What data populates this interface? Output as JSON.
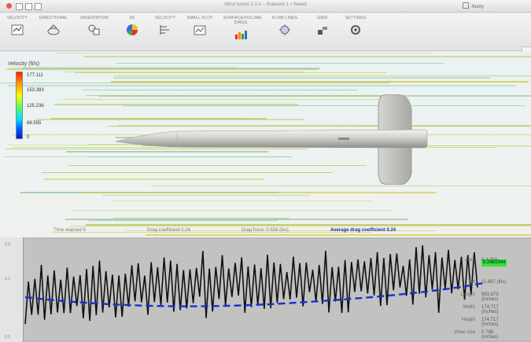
{
  "window": {
    "title": "Wind tunnel 2.0.0 – Scenario 1 • Saved",
    "user_label": "Nunty"
  },
  "toolbar": {
    "items": [
      {
        "label": "VELOCITY",
        "icon": "velocity-icon"
      },
      {
        "label": "DIRECTIONAL",
        "icon": "directional-icon"
      },
      {
        "label": "ORIENTATION",
        "icon": "orientation-icon"
      },
      {
        "label": "3D",
        "icon": "3d-color-icon"
      },
      {
        "label": "VELOCITY",
        "icon": "velocity-profile-icon"
      },
      {
        "label": "SMALL PLOT",
        "icon": "small-plot-icon"
      },
      {
        "label": "SURFACE/VOLUME DIAGS",
        "icon": "surface-volume-icon"
      },
      {
        "label": "FLOW LINES",
        "icon": "flow-lines-icon"
      },
      {
        "label": "GRID",
        "icon": "grid-icon"
      },
      {
        "label": "SETTINGS",
        "icon": "settings-icon"
      }
    ],
    "side_button": "⟨"
  },
  "legend": {
    "title": "Velocity (ft/s)",
    "values": [
      "177.111",
      "153.383",
      "125.236",
      "88.555",
      "0"
    ]
  },
  "stats": {
    "time": "Time elapsed 5",
    "drag_coefficient": "Drag coefficient 0.24",
    "drag_force": "Drag force: 0.558 (lbs)",
    "avg_drag_coefficient": "Average drag coefficient 0.24"
  },
  "graph": {
    "y_ticks": [
      "0.6",
      "0.2",
      "0.0"
    ],
    "current_badge": "0.2481344",
    "info": [
      {
        "key": "Area",
        "value": "8.4 (ft2)"
      },
      {
        "key": "Lift",
        "value": "11.667 (lbs)"
      },
      {
        "key": "Length",
        "value": "993.879 (inches)"
      },
      {
        "key": "Width",
        "value": "174.717 (inches)"
      },
      {
        "key": "Height",
        "value": "174.717 (inches)"
      },
      {
        "key": "Voxel size",
        "value": "0.798 (inches)"
      }
    ]
  },
  "colors": {
    "accent_blue": "#1a2fa0",
    "trend_line": "#1c2fd0",
    "signal_line": "#111111",
    "badge_green": "#2fe23c"
  }
}
